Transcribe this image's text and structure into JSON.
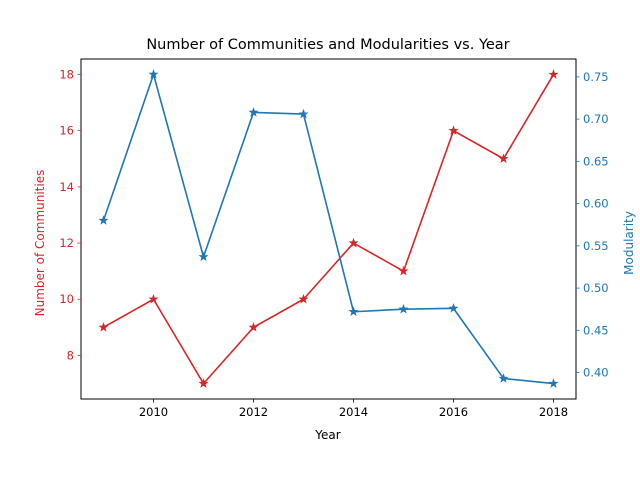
{
  "chart_data": {
    "type": "line",
    "title": "Number of Communities and Modularities vs. Year",
    "xlabel": "Year",
    "ylabel_left": "Number of Communities",
    "ylabel_right": "Modularity",
    "x": [
      2009,
      2010,
      2011,
      2012,
      2013,
      2014,
      2015,
      2016,
      2017,
      2018
    ],
    "xlim": [
      2008.55,
      2018.45
    ],
    "xticks": [
      "2010",
      "2012",
      "2014",
      "2016",
      "2018"
    ],
    "yticks_left": [
      "8",
      "10",
      "12",
      "14",
      "16",
      "18"
    ],
    "yticks_right": [
      "0.40",
      "0.45",
      "0.50",
      "0.55",
      "0.60",
      "0.65",
      "0.70",
      "0.75"
    ],
    "ylim_left": [
      6.45,
      18.55
    ],
    "ylim_right": [
      0.3687,
      0.7712
    ],
    "grid": false,
    "series": [
      {
        "axis": "left",
        "color": "#d62728",
        "marker": "star",
        "values": [
          9,
          10,
          7,
          9,
          10,
          12,
          11,
          16,
          15,
          18
        ]
      },
      {
        "axis": "right",
        "color": "#1f77b4",
        "marker": "star",
        "values": [
          0.58,
          0.753,
          0.537,
          0.708,
          0.706,
          0.472,
          0.475,
          0.476,
          0.393,
          0.387
        ]
      }
    ]
  }
}
